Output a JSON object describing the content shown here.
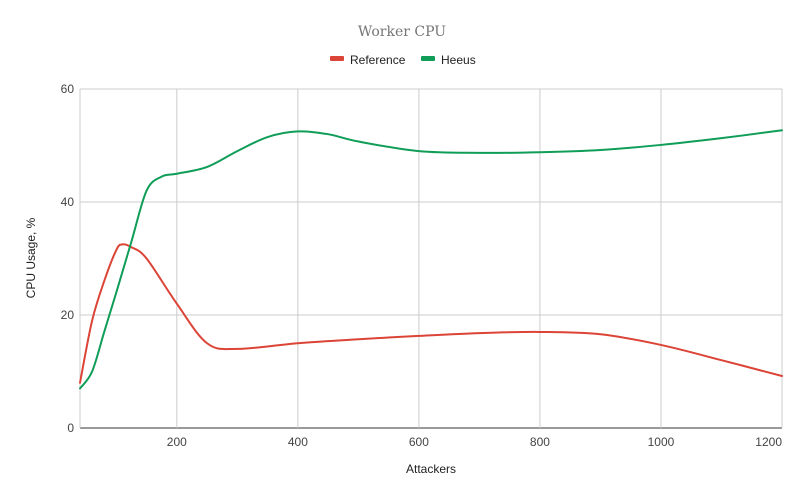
{
  "chart_data": {
    "type": "line",
    "title": "Worker CPU",
    "xlabel": "Attackers",
    "ylabel": "CPU Usage, %",
    "xlim": [
      40,
      1200
    ],
    "ylim": [
      0,
      60
    ],
    "x_ticks": [
      200,
      400,
      600,
      800,
      1000,
      1200
    ],
    "y_ticks": [
      0,
      20,
      40,
      60
    ],
    "x_tick_labels": [
      "200",
      "400",
      "600",
      "800",
      "1000",
      "1200"
    ],
    "y_tick_labels": [
      "0",
      "20",
      "40",
      "60"
    ],
    "grid": true,
    "legend_position": "top",
    "series": [
      {
        "name": "Reference",
        "color": "#db4437",
        "points": [
          {
            "x": 40,
            "y": 8
          },
          {
            "x": 60,
            "y": 19
          },
          {
            "x": 80,
            "y": 26
          },
          {
            "x": 100,
            "y": 31.5
          },
          {
            "x": 110,
            "y": 32.5
          },
          {
            "x": 125,
            "y": 32
          },
          {
            "x": 150,
            "y": 30
          },
          {
            "x": 200,
            "y": 22
          },
          {
            "x": 250,
            "y": 15
          },
          {
            "x": 300,
            "y": 14
          },
          {
            "x": 400,
            "y": 15
          },
          {
            "x": 500,
            "y": 15.7
          },
          {
            "x": 600,
            "y": 16.3
          },
          {
            "x": 700,
            "y": 16.8
          },
          {
            "x": 800,
            "y": 17
          },
          {
            "x": 900,
            "y": 16.6
          },
          {
            "x": 1000,
            "y": 14.7
          },
          {
            "x": 1100,
            "y": 12
          },
          {
            "x": 1200,
            "y": 9.2
          }
        ]
      },
      {
        "name": "Heeus",
        "color": "#0f9d58",
        "points": [
          {
            "x": 40,
            "y": 7
          },
          {
            "x": 60,
            "y": 10
          },
          {
            "x": 80,
            "y": 17
          },
          {
            "x": 100,
            "y": 24
          },
          {
            "x": 125,
            "y": 33
          },
          {
            "x": 150,
            "y": 42
          },
          {
            "x": 175,
            "y": 44.5
          },
          {
            "x": 200,
            "y": 45
          },
          {
            "x": 250,
            "y": 46.2
          },
          {
            "x": 300,
            "y": 49
          },
          {
            "x": 350,
            "y": 51.5
          },
          {
            "x": 400,
            "y": 52.5
          },
          {
            "x": 450,
            "y": 52
          },
          {
            "x": 500,
            "y": 50.7
          },
          {
            "x": 600,
            "y": 49
          },
          {
            "x": 700,
            "y": 48.7
          },
          {
            "x": 800,
            "y": 48.8
          },
          {
            "x": 900,
            "y": 49.2
          },
          {
            "x": 1000,
            "y": 50.1
          },
          {
            "x": 1100,
            "y": 51.3
          },
          {
            "x": 1200,
            "y": 52.7
          }
        ]
      }
    ]
  }
}
